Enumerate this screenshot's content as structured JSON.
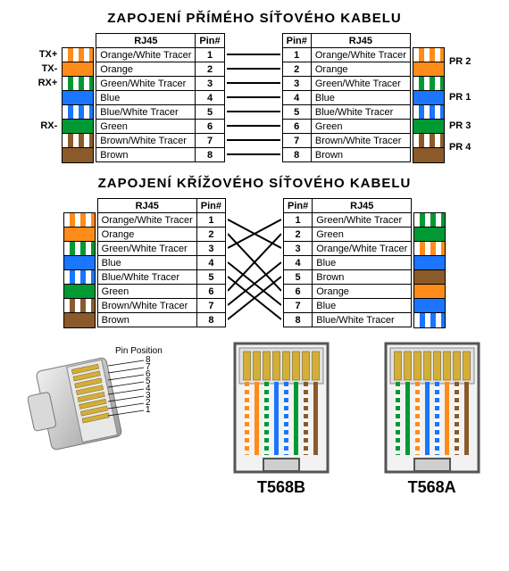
{
  "titles": {
    "straight": "ZAPOJENÍ PŘÍMÉHO SÍŤOVÉHO KABELU",
    "crossover": "ZAPOJENÍ KŘÍŽOVÉHO SÍŤOVÉHO KABELU"
  },
  "headers": {
    "rj45": "RJ45",
    "pin": "Pin#"
  },
  "signals": [
    "TX+",
    "TX-",
    "RX+",
    "",
    "",
    "RX-",
    "",
    ""
  ],
  "pairs": [
    "PR 2",
    "PR 1",
    "PR 3",
    "PR 4"
  ],
  "pair_pins": [
    [
      1,
      2
    ],
    [
      4,
      5
    ],
    [
      3,
      6
    ],
    [
      7,
      8
    ]
  ],
  "colors": {
    "orange": "#ff8c1a",
    "green": "#009933",
    "blue": "#1a75ff",
    "brown": "#8b5a2b",
    "white": "#ffffff",
    "black": "#000000",
    "connector_body": "#d9d9d9",
    "connector_body_dark": "#9a9a9a",
    "gold": "#d4af37"
  },
  "t568b": [
    {
      "label": "Orange/White Tracer",
      "c": "orange",
      "striped": true
    },
    {
      "label": "Orange",
      "c": "orange",
      "striped": false
    },
    {
      "label": "Green/White Tracer",
      "c": "green",
      "striped": true
    },
    {
      "label": "Blue",
      "c": "blue",
      "striped": false
    },
    {
      "label": "Blue/White Tracer",
      "c": "blue",
      "striped": true
    },
    {
      "label": "Green",
      "c": "green",
      "striped": false
    },
    {
      "label": "Brown/White Tracer",
      "c": "brown",
      "striped": true
    },
    {
      "label": "Brown",
      "c": "brown",
      "striped": false
    }
  ],
  "t568a": [
    {
      "label": "Green/White Tracer",
      "c": "green",
      "striped": true
    },
    {
      "label": "Green",
      "c": "green",
      "striped": false
    },
    {
      "label": "Orange/White Tracer",
      "c": "orange",
      "striped": true
    },
    {
      "label": "Blue",
      "c": "blue",
      "striped": false
    },
    {
      "label": "Brown",
      "c": "brown",
      "striped": false
    },
    {
      "label": "Orange",
      "c": "orange",
      "striped": false
    },
    {
      "label": "Blue",
      "c": "blue",
      "striped": false
    },
    {
      "label": "Blue/White Tracer",
      "c": "blue",
      "striped": true
    }
  ],
  "cross_map": [
    [
      1,
      3
    ],
    [
      2,
      6
    ],
    [
      3,
      1
    ],
    [
      4,
      7
    ],
    [
      5,
      8
    ],
    [
      6,
      2
    ],
    [
      7,
      4
    ],
    [
      8,
      5
    ]
  ],
  "jack_labels": {
    "b": "T568B",
    "a": "T568A"
  },
  "pin_position_label": "Pin Position",
  "pin_numbers": [
    "8",
    "7",
    "6",
    "5",
    "4",
    "3",
    "2",
    "1"
  ]
}
